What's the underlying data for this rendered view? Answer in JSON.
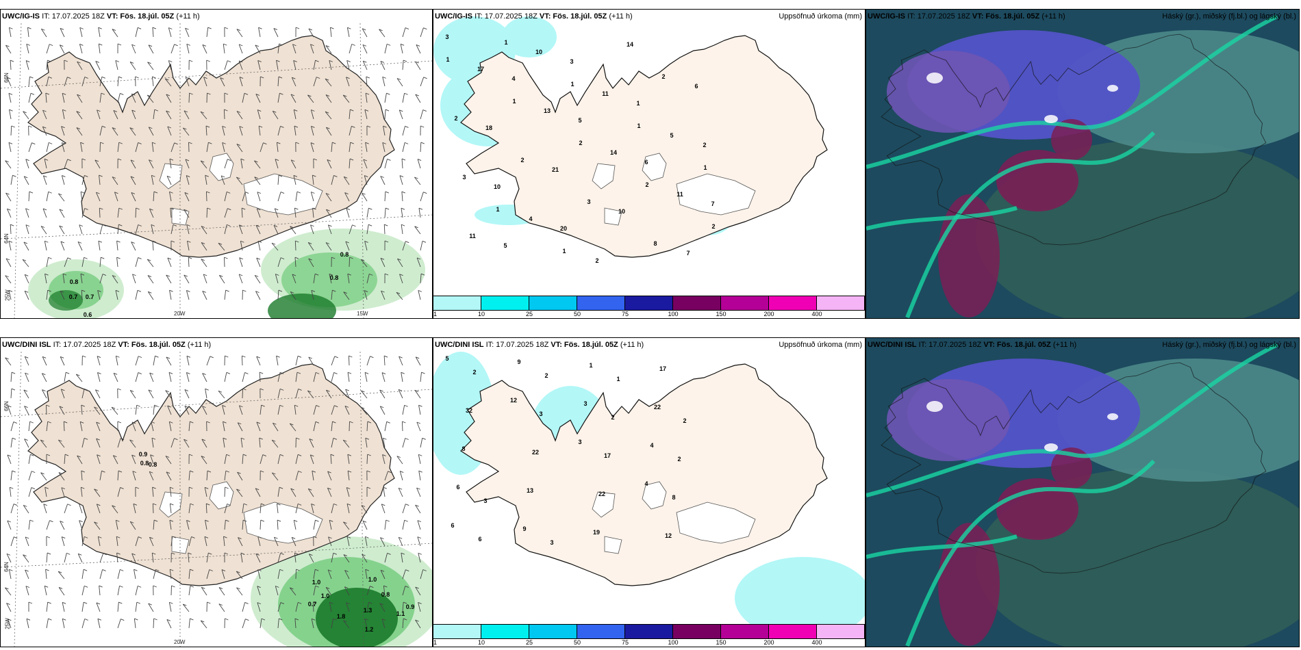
{
  "panels": {
    "p1": {
      "model": "UWC/IG-IS",
      "issued": "IT: 17.07.2025 18Z",
      "valid": "VT: Fös. 18.júl. 05Z",
      "lead": "(+11 h)",
      "right": ""
    },
    "p2": {
      "model": "UWC/IG-IS",
      "issued": "IT: 17.07.2025 18Z",
      "valid": "VT: Fös. 18.júl. 05Z",
      "lead": "(+11 h)",
      "right": "Uppsöfnuð úrkoma (mm)"
    },
    "p3": {
      "model": "UWC/IG-IS",
      "issued": "IT: 17.07.2025 18Z",
      "valid": "VT: Fös. 18.júl. 05Z",
      "lead": "(+11 h)",
      "right": "Háský (gr.), miðský (fj.bl.) og lágský (bl.)"
    },
    "p4": {
      "model": "UWC/DINI ISL",
      "issued": "IT: 17.07.2025 18Z",
      "valid": "VT: Fös. 18.júl. 05Z",
      "lead": "(+11 h)",
      "right": ""
    },
    "p5": {
      "model": "UWC/DINI ISL",
      "issued": "IT: 17.07.2025 18Z",
      "valid": "VT: Fös. 18.júl. 05Z",
      "lead": "(+11 h)",
      "right": "Uppsöfnuð úrkoma (mm)"
    },
    "p6": {
      "model": "UWC/DINI ISL",
      "issued": "IT: 17.07.2025 18Z",
      "valid": "VT: Fös. 18.júl. 05Z",
      "lead": "(+11 h)",
      "right": "Háský (gr.), miðský (fj.bl.) og lágský (bl.)"
    }
  },
  "axis_labels": {
    "lat66": "66N",
    "lat64": "64N",
    "lon25": "25W",
    "lon20": "20W",
    "lon15": "15W"
  },
  "precip_legend": {
    "ticks": [
      "1",
      "10",
      "25",
      "50",
      "75",
      "100",
      "150",
      "200",
      "400"
    ],
    "colors": [
      "#b3f7f7",
      "#00f0f0",
      "#00c8f0",
      "#3264f0",
      "#1a1aa0",
      "#780060",
      "#b40096",
      "#f000b4",
      "#f5b4f5"
    ]
  },
  "wind_values_top": [
    "0.8",
    "0.8",
    "0.8",
    "0.7",
    "0.7",
    "0.6"
  ],
  "wind_values_bottom": [
    "0.9",
    "0.8",
    "0.8",
    "1.0",
    "1.0",
    "1.0",
    "0.8",
    "0.7",
    "0.9",
    "1.8",
    "1.3",
    "1.1",
    "1.2"
  ],
  "precip_values_top": [
    "3",
    "4",
    "5",
    "6",
    "7",
    "5",
    "3",
    "1",
    "2",
    "10",
    "20",
    "14",
    "6",
    "18",
    "21",
    "10",
    "7",
    "17",
    "13",
    "14",
    "11",
    "11",
    "10",
    "11",
    "5",
    "3",
    "4",
    "2",
    "2",
    "2",
    "2",
    "3",
    "8",
    "1",
    "1",
    "2",
    "2",
    "2",
    "1",
    "1",
    "1",
    "1",
    "1",
    "1"
  ],
  "precip_values_bottom": [
    "5",
    "12",
    "3",
    "4",
    "6",
    "9",
    "3",
    "4",
    "6",
    "9",
    "1",
    "22",
    "8",
    "13",
    "19",
    "17",
    "32",
    "22",
    "22",
    "12",
    "2",
    "3",
    "17",
    "8",
    "6",
    "2",
    "2",
    "2",
    "3",
    "3",
    "1",
    "2"
  ],
  "colors": {
    "land": "#efe1d3",
    "precip_land": "#fdf3ea",
    "sea_green_light": "#cfeccf",
    "sea_green": "#7ccf85",
    "sea_green_dark": "#1a7a2a"
  }
}
